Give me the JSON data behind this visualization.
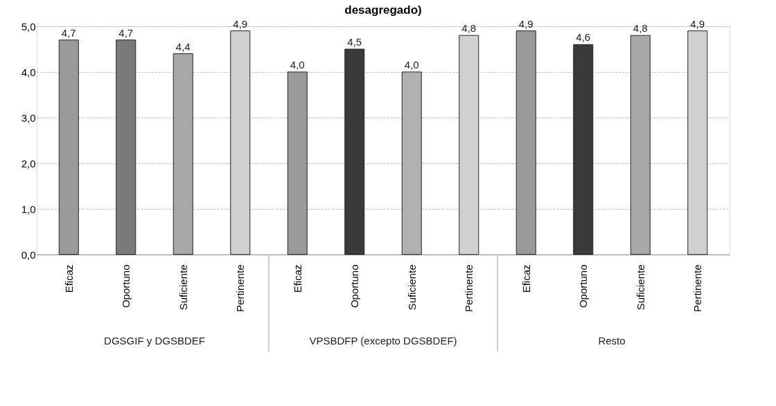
{
  "chart_data": {
    "type": "bar",
    "title": "desagregado)",
    "categories": [
      "Eficaz",
      "Oportuno",
      "Suficiente",
      "Pertinente",
      "Eficaz",
      "Oportuno",
      "Suficiente",
      "Pertinente",
      "Eficaz",
      "Oportuno",
      "Suficiente",
      "Pertinente"
    ],
    "values": [
      4.7,
      4.7,
      4.4,
      4.9,
      4.0,
      4.5,
      4.0,
      4.8,
      4.9,
      4.6,
      4.8,
      4.9
    ],
    "value_labels": [
      "4,7",
      "4,7",
      "4,4",
      "4,9",
      "4,0",
      "4,5",
      "4,0",
      "4,8",
      "4,9",
      "4,6",
      "4,8",
      "4,9"
    ],
    "colors": [
      "#9a9a9a",
      "#7a7a7a",
      "#a8a8a8",
      "#d0d0d0",
      "#9a9a9a",
      "#3a3a3a",
      "#b0b0b0",
      "#d0d0d0",
      "#9a9a9a",
      "#3a3a3a",
      "#a8a8a8",
      "#d0d0d0"
    ],
    "annotations": [
      "DGSGIF y DGSBDEF",
      "VPSBDFP (excepto DGSBDEF)",
      "Resto"
    ],
    "ylim": [
      0,
      5
    ],
    "yticks": [
      {
        "value": 0,
        "label": "0,0"
      },
      {
        "value": 1,
        "label": "1,0"
      },
      {
        "value": 2,
        "label": "2,0"
      },
      {
        "value": 3,
        "label": "3,0"
      },
      {
        "value": 4,
        "label": "4,0"
      },
      {
        "value": 5,
        "label": "5,0"
      }
    ],
    "grid": "y"
  }
}
